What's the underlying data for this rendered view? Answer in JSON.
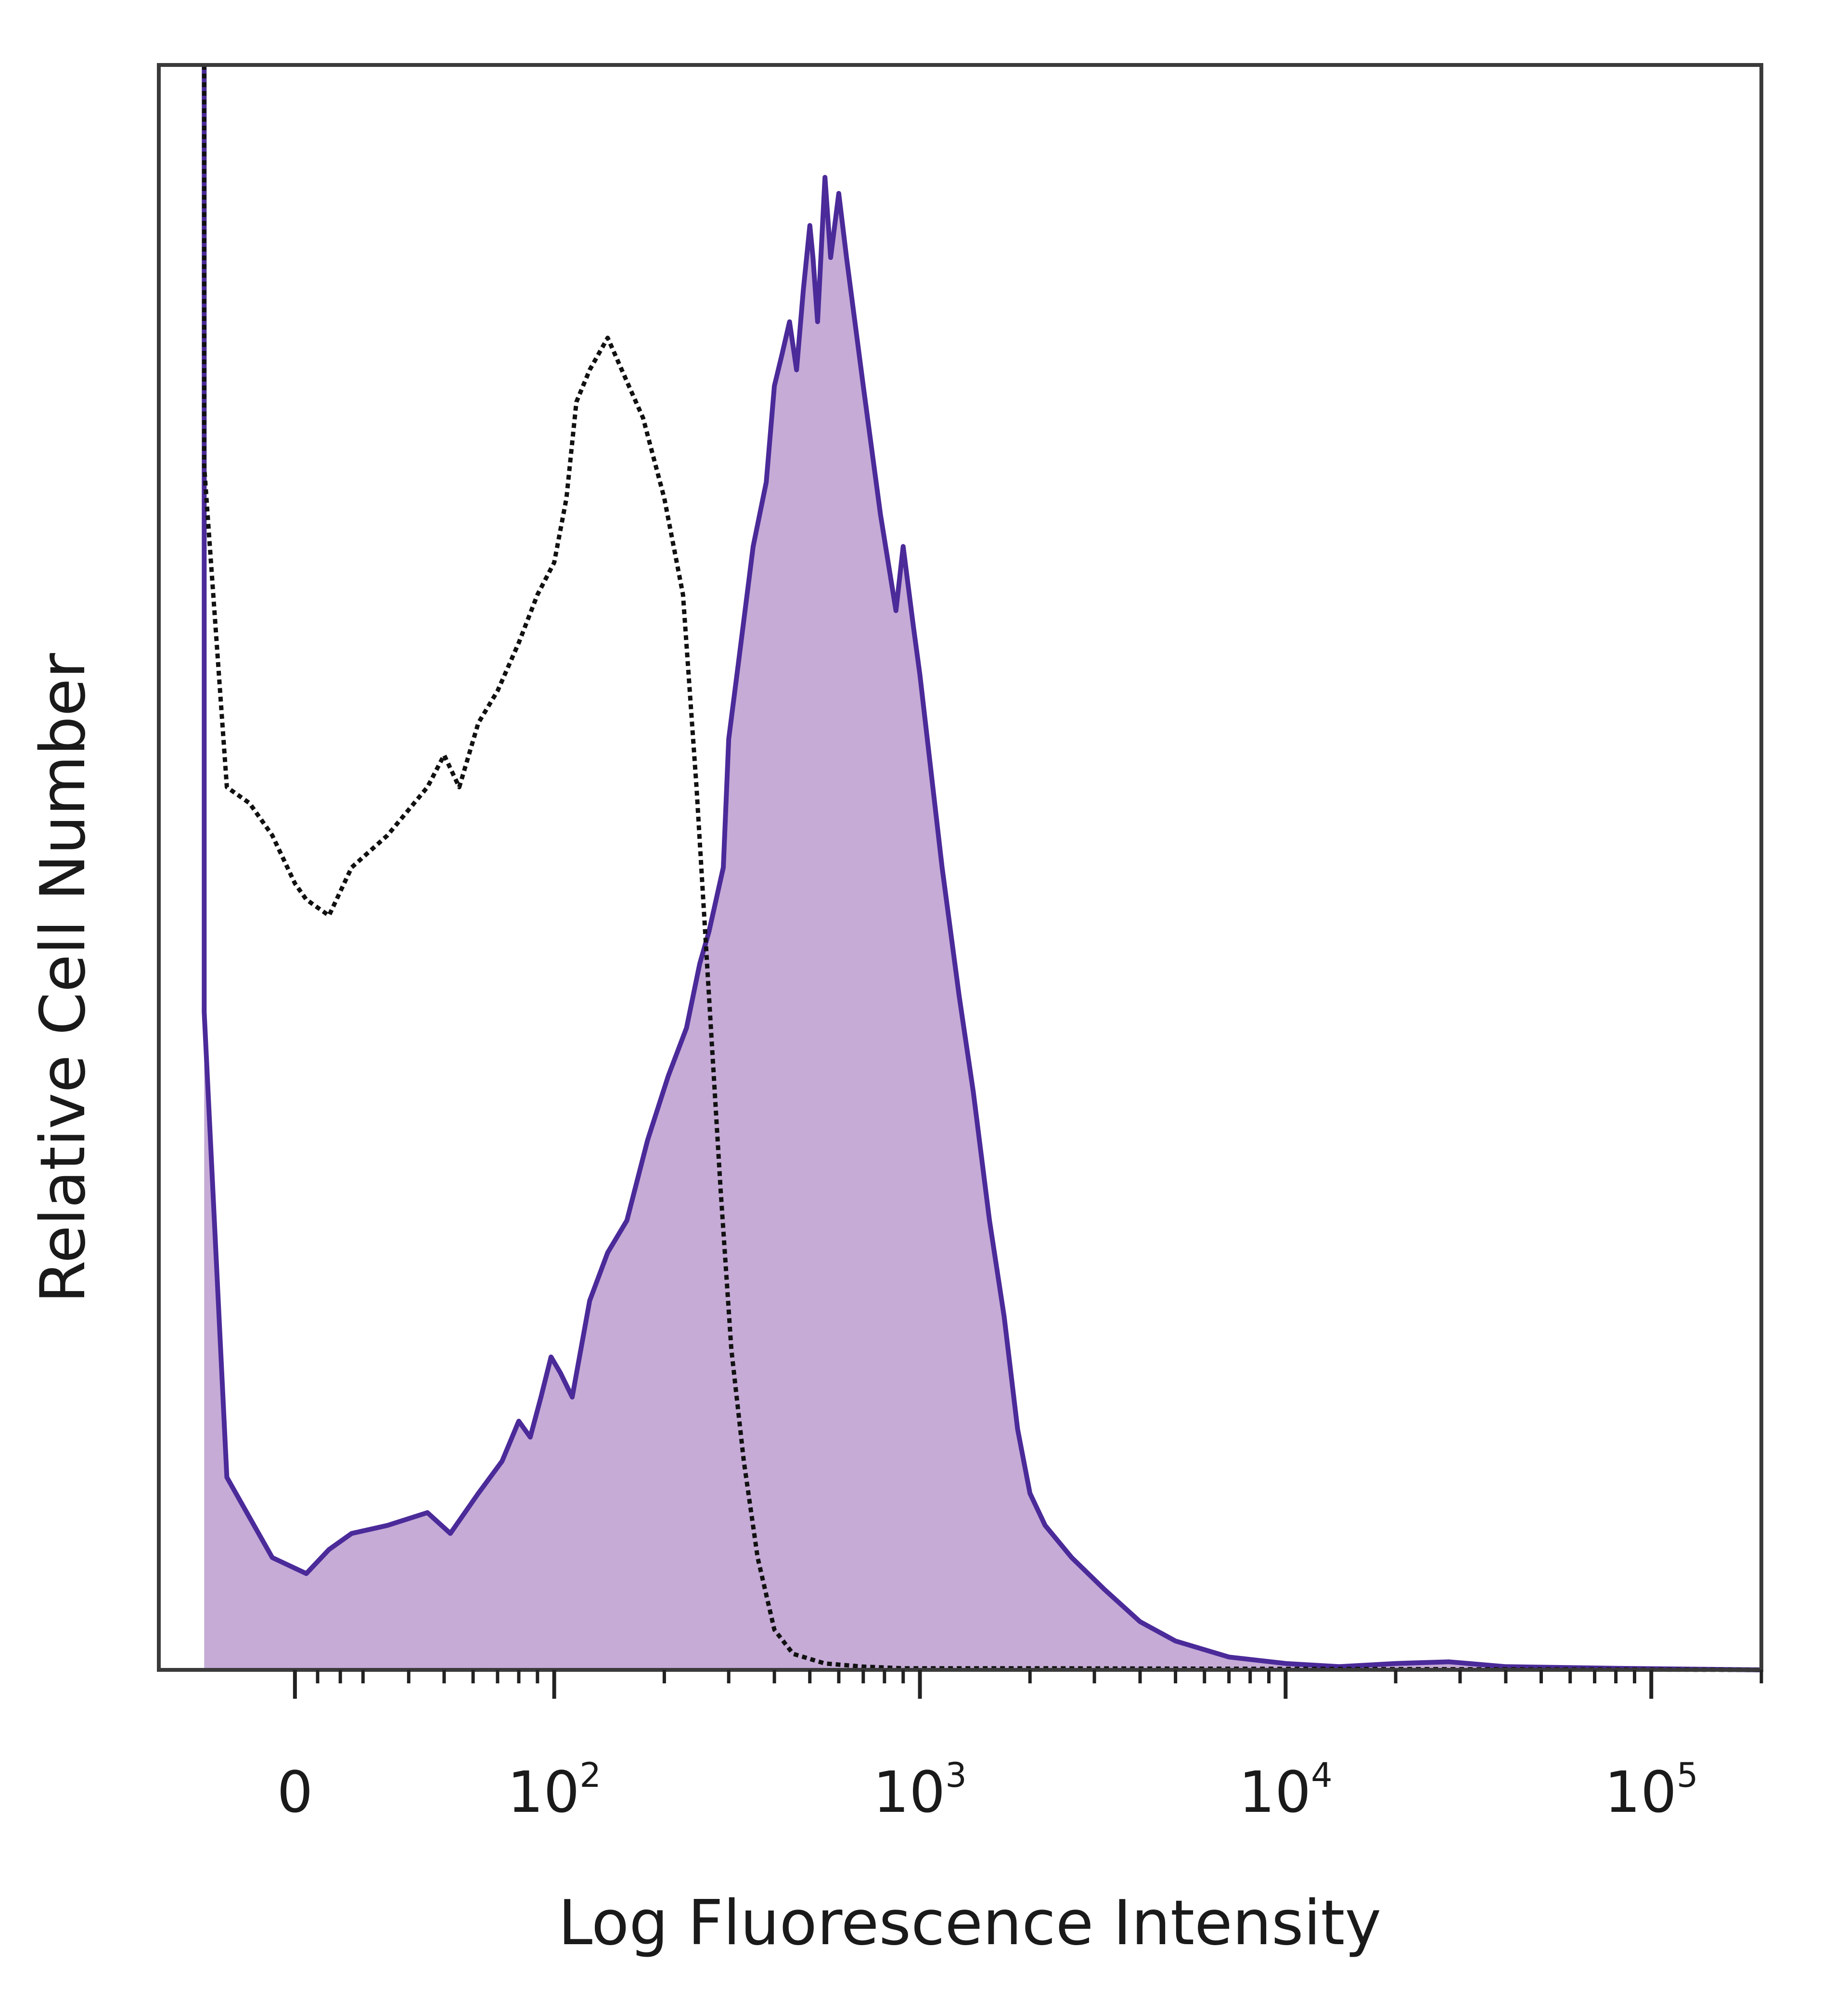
{
  "chart_data": {
    "type": "area",
    "xlabel": "Log Fluorescence Intensity",
    "ylabel": "Relative Cell Number",
    "x_scale": "biexponential",
    "xlim": [
      -60,
      200000
    ],
    "ylim": [
      0,
      100
    ],
    "x_ticks": [
      {
        "value": 0,
        "base": "0",
        "exp": ""
      },
      {
        "value": 100,
        "base": "10",
        "exp": "2"
      },
      {
        "value": 1000,
        "base": "10",
        "exp": "3"
      },
      {
        "value": 10000,
        "base": "10",
        "exp": "4"
      },
      {
        "value": 100000,
        "base": "10",
        "exp": "5"
      }
    ],
    "grid": false,
    "legend": "none",
    "series": [
      {
        "style": "filled",
        "color": "#4b2a99",
        "fill": "#c5abd6",
        "points": [
          [
            -40,
            100
          ],
          [
            -40,
            41
          ],
          [
            -30,
            12
          ],
          [
            -10,
            7
          ],
          [
            5,
            6
          ],
          [
            15,
            7.5
          ],
          [
            25,
            8.5
          ],
          [
            35,
            9
          ],
          [
            45,
            9.8
          ],
          [
            52,
            8.5
          ],
          [
            62,
            11
          ],
          [
            72,
            13
          ],
          [
            80,
            15.5
          ],
          [
            86,
            14.5
          ],
          [
            92,
            17
          ],
          [
            98,
            19.5
          ],
          [
            104,
            18.5
          ],
          [
            112,
            17
          ],
          [
            125,
            23
          ],
          [
            140,
            26
          ],
          [
            158,
            28
          ],
          [
            180,
            33
          ],
          [
            205,
            37
          ],
          [
            230,
            40
          ],
          [
            250,
            44
          ],
          [
            265,
            46
          ],
          [
            290,
            50
          ],
          [
            300,
            58
          ],
          [
            320,
            63
          ],
          [
            350,
            70
          ],
          [
            380,
            74
          ],
          [
            400,
            80
          ],
          [
            420,
            82
          ],
          [
            440,
            84
          ],
          [
            460,
            81
          ],
          [
            480,
            86
          ],
          [
            500,
            90
          ],
          [
            510,
            88
          ],
          [
            525,
            84
          ],
          [
            550,
            93
          ],
          [
            570,
            88
          ],
          [
            600,
            92
          ],
          [
            630,
            88
          ],
          [
            700,
            80
          ],
          [
            780,
            72
          ],
          [
            860,
            66
          ],
          [
            900,
            70
          ],
          [
            960,
            65
          ],
          [
            1000,
            62
          ],
          [
            1060,
            57
          ],
          [
            1150,
            50
          ],
          [
            1280,
            42
          ],
          [
            1400,
            36
          ],
          [
            1550,
            28
          ],
          [
            1700,
            22
          ],
          [
            1850,
            15
          ],
          [
            2000,
            11
          ],
          [
            2200,
            9
          ],
          [
            2600,
            7
          ],
          [
            3200,
            5
          ],
          [
            4000,
            3
          ],
          [
            5000,
            1.8
          ],
          [
            7000,
            0.8
          ],
          [
            10000,
            0.4
          ],
          [
            14000,
            0.2
          ],
          [
            20000,
            0.4
          ],
          [
            28000,
            0.5
          ],
          [
            40000,
            0.2
          ],
          [
            80000,
            0.1
          ],
          [
            200000,
            0
          ]
        ]
      },
      {
        "style": "dotted",
        "color": "#111111",
        "fill": "none",
        "points": [
          [
            -40,
            100
          ],
          [
            -40,
            75
          ],
          [
            -30,
            55
          ],
          [
            -20,
            54
          ],
          [
            -10,
            52
          ],
          [
            0,
            49
          ],
          [
            5,
            48
          ],
          [
            15,
            47
          ],
          [
            25,
            50
          ],
          [
            35,
            52
          ],
          [
            45,
            55
          ],
          [
            50,
            57
          ],
          [
            55,
            55
          ],
          [
            62,
            59
          ],
          [
            70,
            61
          ],
          [
            80,
            64
          ],
          [
            90,
            67
          ],
          [
            100,
            69
          ],
          [
            108,
            73
          ],
          [
            115,
            79
          ],
          [
            125,
            81
          ],
          [
            140,
            83
          ],
          [
            160,
            80
          ],
          [
            175,
            78
          ],
          [
            200,
            73
          ],
          [
            225,
            67
          ],
          [
            245,
            55
          ],
          [
            265,
            42
          ],
          [
            285,
            30
          ],
          [
            305,
            20
          ],
          [
            330,
            13
          ],
          [
            360,
            7
          ],
          [
            400,
            2.5
          ],
          [
            450,
            1
          ],
          [
            550,
            0.4
          ],
          [
            700,
            0.2
          ],
          [
            900,
            0.1
          ],
          [
            2000,
            0.1
          ],
          [
            200000,
            0
          ]
        ]
      }
    ]
  }
}
